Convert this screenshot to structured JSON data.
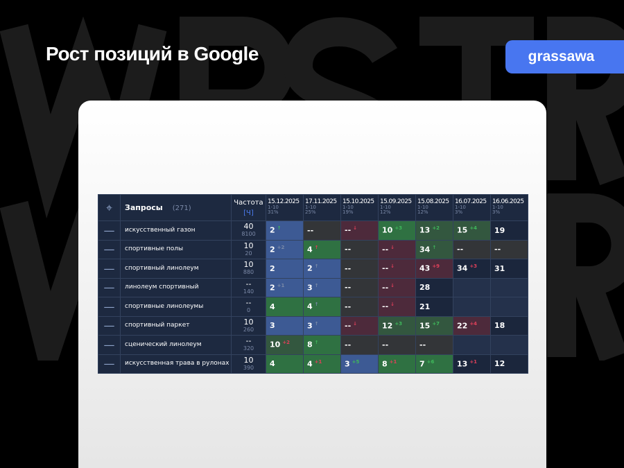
{
  "watermark": [
    "WPSTR",
    "WPSTR"
  ],
  "header": {
    "title": "Рост позиций в Google",
    "brand": "grassawa"
  },
  "table": {
    "queries_label": "Запросы",
    "queries_count": "(271)",
    "freq_label": "Частота",
    "freq_mode": "[Ч]",
    "dates": [
      {
        "date": "15.12.2025",
        "range": "1-10",
        "pct": "31%"
      },
      {
        "date": "17.11.2025",
        "range": "1-10",
        "pct": "25%"
      },
      {
        "date": "15.10.2025",
        "range": "1-10",
        "pct": "19%"
      },
      {
        "date": "15.09.2025",
        "range": "1-10",
        "pct": "12%"
      },
      {
        "date": "15.08.2025",
        "range": "1-10",
        "pct": "12%"
      },
      {
        "date": "16.07.2025",
        "range": "1-10",
        "pct": "3%"
      },
      {
        "date": "16.06.2025",
        "range": "1-10",
        "pct": "3%"
      }
    ],
    "rows": [
      {
        "q": "искусственный газон",
        "f1": "40",
        "f2": "8100",
        "cells": [
          {
            "v": "2",
            "d": "↑",
            "s": "up",
            "t": "B"
          },
          {
            "v": "--",
            "t": "K"
          },
          {
            "v": "--",
            "d": "↓",
            "s": "dn",
            "t": "R"
          },
          {
            "v": "10",
            "d": "+3",
            "s": "up",
            "t": "G"
          },
          {
            "v": "13",
            "d": "+2",
            "s": "up",
            "t": "g"
          },
          {
            "v": "15",
            "d": "+4",
            "s": "up",
            "t": "g"
          },
          {
            "v": "19",
            "t": "N"
          }
        ]
      },
      {
        "q": "спортивные полы",
        "f1": "10",
        "f2": "20",
        "cells": [
          {
            "v": "2",
            "d": "+2",
            "s": "nt",
            "t": "B"
          },
          {
            "v": "4",
            "d": "↑",
            "s": "dn",
            "t": "G"
          },
          {
            "v": "--",
            "t": "K"
          },
          {
            "v": "--",
            "d": "↓",
            "s": "dn",
            "t": "R"
          },
          {
            "v": "34",
            "d": "↑",
            "s": "up",
            "t": "g"
          },
          {
            "v": "--",
            "t": "K"
          },
          {
            "v": "--",
            "t": "K"
          }
        ]
      },
      {
        "q": "спортивный линолеум",
        "f1": "10",
        "f2": "880",
        "cells": [
          {
            "v": "2",
            "t": "B"
          },
          {
            "v": "2",
            "d": "↑",
            "s": "nt",
            "t": "B"
          },
          {
            "v": "--",
            "t": "K"
          },
          {
            "v": "--",
            "d": "↓",
            "s": "dn",
            "t": "R"
          },
          {
            "v": "43",
            "d": "+9",
            "s": "dn",
            "t": "R"
          },
          {
            "v": "34",
            "d": "+3",
            "s": "dn",
            "t": "N"
          },
          {
            "v": "31",
            "t": "N"
          }
        ]
      },
      {
        "q": "линолеум спортивный",
        "f1": "--",
        "f2": "140",
        "cells": [
          {
            "v": "2",
            "d": "+1",
            "s": "nt",
            "t": "B"
          },
          {
            "v": "3",
            "d": "↑",
            "s": "nt",
            "t": "B"
          },
          {
            "v": "--",
            "t": "K"
          },
          {
            "v": "--",
            "d": "↓",
            "s": "dn",
            "t": "R"
          },
          {
            "v": "28",
            "t": "N"
          },
          {
            "v": "",
            "t": "E"
          },
          {
            "v": "",
            "t": "E"
          }
        ]
      },
      {
        "q": "спортивные линолеумы",
        "f1": "--",
        "f2": "0",
        "cells": [
          {
            "v": "4",
            "t": "G"
          },
          {
            "v": "4",
            "d": "↑",
            "s": "nt",
            "t": "G"
          },
          {
            "v": "--",
            "t": "K"
          },
          {
            "v": "--",
            "d": "↓",
            "s": "dn",
            "t": "R"
          },
          {
            "v": "21",
            "t": "N"
          },
          {
            "v": "",
            "t": "E"
          },
          {
            "v": "",
            "t": "E"
          }
        ]
      },
      {
        "q": "спортивный паркет",
        "f1": "10",
        "f2": "260",
        "cells": [
          {
            "v": "3",
            "t": "B"
          },
          {
            "v": "3",
            "d": "↑",
            "s": "nt",
            "t": "B"
          },
          {
            "v": "--",
            "d": "↓",
            "s": "dn",
            "t": "R"
          },
          {
            "v": "12",
            "d": "+3",
            "s": "up",
            "t": "g"
          },
          {
            "v": "15",
            "d": "+7",
            "s": "up",
            "t": "g"
          },
          {
            "v": "22",
            "d": "+4",
            "s": "dn",
            "t": "R"
          },
          {
            "v": "18",
            "t": "N"
          }
        ]
      },
      {
        "q": "сценический линолеум",
        "f1": "--",
        "f2": "320",
        "cells": [
          {
            "v": "10",
            "d": "+2",
            "s": "dn",
            "t": "g"
          },
          {
            "v": "8",
            "d": "↑",
            "s": "up",
            "t": "G"
          },
          {
            "v": "--",
            "t": "K"
          },
          {
            "v": "--",
            "t": "K"
          },
          {
            "v": "--",
            "t": "K"
          },
          {
            "v": "",
            "t": "E"
          },
          {
            "v": "",
            "t": "E"
          }
        ]
      },
      {
        "q": "искусственная трава в рулонах",
        "f1": "10",
        "f2": "390",
        "cells": [
          {
            "v": "4",
            "t": "G"
          },
          {
            "v": "4",
            "d": "+1",
            "s": "dn",
            "t": "G"
          },
          {
            "v": "3",
            "d": "+5",
            "s": "up",
            "t": "B"
          },
          {
            "v": "8",
            "d": "+1",
            "s": "dn",
            "t": "G"
          },
          {
            "v": "7",
            "d": "+6",
            "s": "up",
            "t": "G"
          },
          {
            "v": "13",
            "d": "+1",
            "s": "dn",
            "t": "N"
          },
          {
            "v": "12",
            "t": "N"
          }
        ]
      }
    ]
  }
}
